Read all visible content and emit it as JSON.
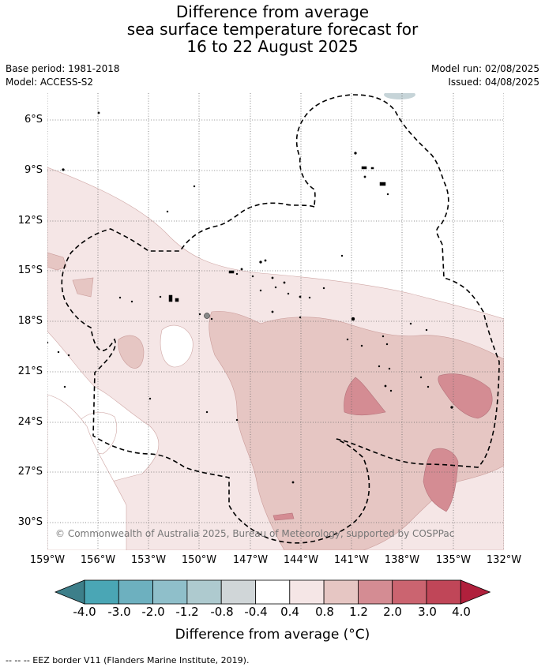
{
  "title": {
    "line1": "Difference from average",
    "line2": "sea surface temperature forecast for",
    "line3": "16 to 22 August 2025"
  },
  "meta": {
    "base_period": "Base period: 1981-2018",
    "model": "Model: ACCESS-S2",
    "model_run": "Model run: 02/08/2025",
    "issued": "Issued: 04/08/2025"
  },
  "map": {
    "lat_labels": [
      "6°S",
      "9°S",
      "12°S",
      "15°S",
      "18°S",
      "21°S",
      "24°S",
      "27°S",
      "30°S"
    ],
    "lon_labels": [
      "159°W",
      "156°W",
      "153°W",
      "150°W",
      "147°W",
      "144°W",
      "141°W",
      "138°W",
      "135°W",
      "132°W"
    ],
    "copyright": "© Commonwealth of Australia 2025, Bureau of Meteorology, supported by COSPPac",
    "colors": {
      "band_0_4_0_8": "#f5e6e6",
      "band_0_8_1_2": "#e6c6c3",
      "band_1_2_2_0": "#d48c93",
      "land": "#000000",
      "eez": "#000000"
    }
  },
  "colorbar": {
    "ticks": [
      "-4.0",
      "-3.0",
      "-2.0",
      "-1.2",
      "-0.8",
      "-0.4",
      "0.4",
      "0.8",
      "1.2",
      "2.0",
      "3.0",
      "4.0"
    ],
    "colors": [
      "#3d7f8a",
      "#4aa6b5",
      "#6db0bf",
      "#8fbfca",
      "#aecacf",
      "#d0d6d8",
      "#ffffff",
      "#f5e6e6",
      "#e6c6c3",
      "#d48c93",
      "#cb6470",
      "#c04658",
      "#b0203c"
    ],
    "title": "Difference from average (°C)"
  },
  "footer": "-- -- -- EEZ border V11 (Flanders Marine Institute, 2019)."
}
